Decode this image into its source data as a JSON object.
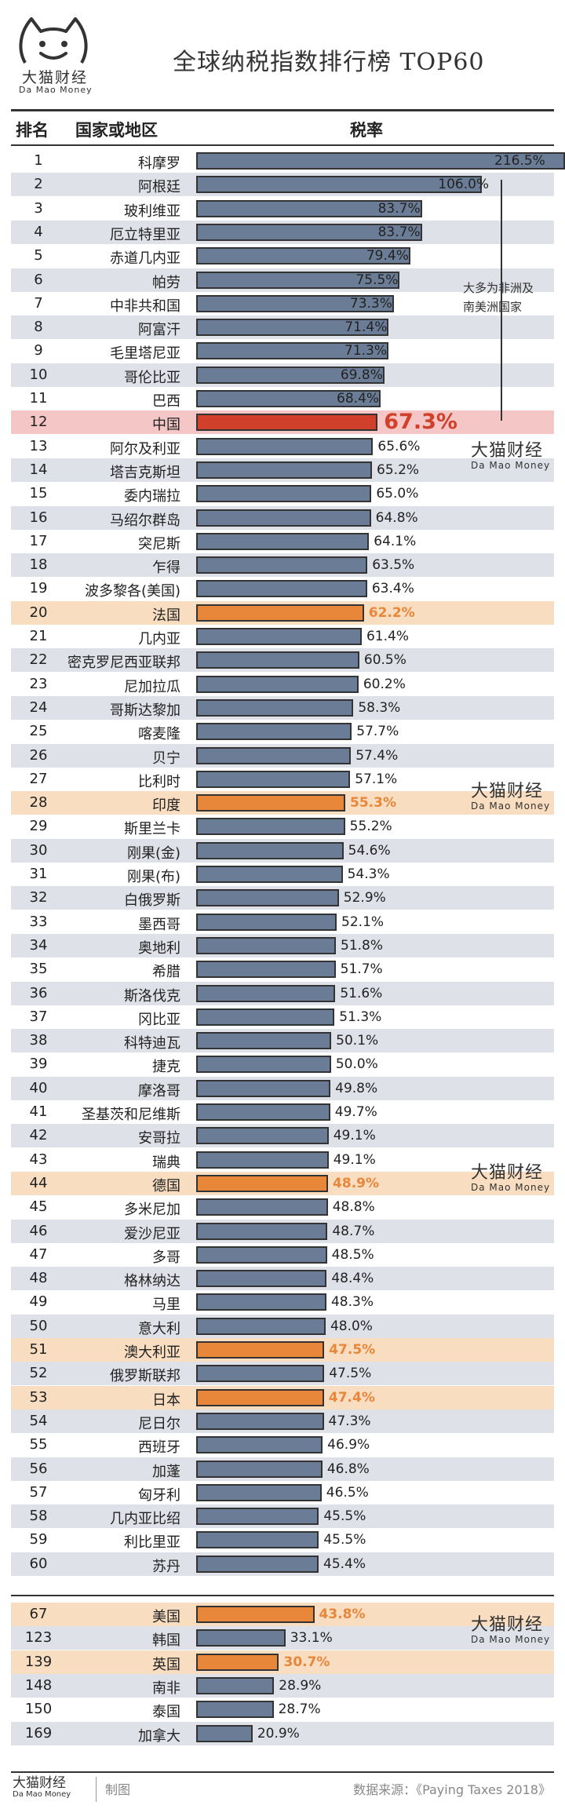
{
  "header": {
    "title": "全球纳税指数排行榜 TOP60",
    "logo_cn": "大猫财经",
    "logo_en": "Da Mao Money"
  },
  "columns": {
    "rank": "排名",
    "country": "国家或地区",
    "rate": "税率"
  },
  "note": "大多为非洲及南美洲国家",
  "watermark": {
    "cn": "大猫财经",
    "en": "Da Mao Money"
  },
  "footer": {
    "logo_cn": "大猫财经",
    "logo_en": "Da Mao Money",
    "made": "制图",
    "source": "数据来源：《Paying Taxes 2018》"
  },
  "colors": {
    "bar": "#6b7d96",
    "highlight": "#e8863a",
    "china": "#d0402a",
    "row_shade": "#dfe1e8",
    "row_orange": "#f8ddc0",
    "row_red": "#f4c6c6"
  },
  "chart_data": {
    "type": "bar",
    "orientation": "horizontal",
    "value_unit": "%",
    "xlim": [
      0,
      110
    ],
    "rows": [
      {
        "rank": "1",
        "name": "科摩罗",
        "value": 216.5,
        "label": "216.5%"
      },
      {
        "rank": "2",
        "name": "阿根廷",
        "value": 106.0,
        "label": "106.0%"
      },
      {
        "rank": "3",
        "name": "玻利维亚",
        "value": 83.7,
        "label": "83.7%"
      },
      {
        "rank": "4",
        "name": "厄立特里亚",
        "value": 83.7,
        "label": "83.7%"
      },
      {
        "rank": "5",
        "name": "赤道几内亚",
        "value": 79.4,
        "label": "79.4%"
      },
      {
        "rank": "6",
        "name": "帕劳",
        "value": 75.5,
        "label": "75.5%"
      },
      {
        "rank": "7",
        "name": "中非共和国",
        "value": 73.3,
        "label": "73.3%"
      },
      {
        "rank": "8",
        "name": "阿富汗",
        "value": 71.4,
        "label": "71.4%"
      },
      {
        "rank": "9",
        "name": "毛里塔尼亚",
        "value": 71.3,
        "label": "71.3%"
      },
      {
        "rank": "10",
        "name": "哥伦比亚",
        "value": 69.8,
        "label": "69.8%"
      },
      {
        "rank": "11",
        "name": "巴西",
        "value": 68.4,
        "label": "68.4%"
      },
      {
        "rank": "12",
        "name": "中国",
        "value": 67.3,
        "label": "67.3%",
        "highlight": "china"
      },
      {
        "rank": "13",
        "name": "阿尔及利亚",
        "value": 65.6,
        "label": "65.6%"
      },
      {
        "rank": "14",
        "name": "塔吉克斯坦",
        "value": 65.2,
        "label": "65.2%"
      },
      {
        "rank": "15",
        "name": "委内瑞拉",
        "value": 65.0,
        "label": "65.0%"
      },
      {
        "rank": "16",
        "name": "马绍尔群岛",
        "value": 64.8,
        "label": "64.8%"
      },
      {
        "rank": "17",
        "name": "突尼斯",
        "value": 64.1,
        "label": "64.1%"
      },
      {
        "rank": "18",
        "name": "乍得",
        "value": 63.5,
        "label": "63.5%"
      },
      {
        "rank": "19",
        "name": "波多黎各(美国)",
        "value": 63.4,
        "label": "63.4%"
      },
      {
        "rank": "20",
        "name": "法国",
        "value": 62.2,
        "label": "62.2%",
        "highlight": "orange"
      },
      {
        "rank": "21",
        "name": "几内亚",
        "value": 61.4,
        "label": "61.4%"
      },
      {
        "rank": "22",
        "name": "密克罗尼西亚联邦",
        "value": 60.5,
        "label": "60.5%"
      },
      {
        "rank": "23",
        "name": "尼加拉瓜",
        "value": 60.2,
        "label": "60.2%"
      },
      {
        "rank": "24",
        "name": "哥斯达黎加",
        "value": 58.3,
        "label": "58.3%"
      },
      {
        "rank": "25",
        "name": "喀麦隆",
        "value": 57.7,
        "label": "57.7%"
      },
      {
        "rank": "26",
        "name": "贝宁",
        "value": 57.4,
        "label": "57.4%"
      },
      {
        "rank": "27",
        "name": "比利时",
        "value": 57.1,
        "label": "57.1%"
      },
      {
        "rank": "28",
        "name": "印度",
        "value": 55.3,
        "label": "55.3%",
        "highlight": "orange"
      },
      {
        "rank": "29",
        "name": "斯里兰卡",
        "value": 55.2,
        "label": "55.2%"
      },
      {
        "rank": "30",
        "name": "刚果(金)",
        "value": 54.6,
        "label": "54.6%"
      },
      {
        "rank": "31",
        "name": "刚果(布)",
        "value": 54.3,
        "label": "54.3%"
      },
      {
        "rank": "32",
        "name": "白俄罗斯",
        "value": 52.9,
        "label": "52.9%"
      },
      {
        "rank": "33",
        "name": "墨西哥",
        "value": 52.1,
        "label": "52.1%"
      },
      {
        "rank": "34",
        "name": "奥地利",
        "value": 51.8,
        "label": "51.8%"
      },
      {
        "rank": "35",
        "name": "希腊",
        "value": 51.7,
        "label": "51.7%"
      },
      {
        "rank": "36",
        "name": "斯洛伐克",
        "value": 51.6,
        "label": "51.6%"
      },
      {
        "rank": "37",
        "name": "冈比亚",
        "value": 51.3,
        "label": "51.3%"
      },
      {
        "rank": "38",
        "name": "科特迪瓦",
        "value": 50.1,
        "label": "50.1%"
      },
      {
        "rank": "39",
        "name": "捷克",
        "value": 50.0,
        "label": "50.0%"
      },
      {
        "rank": "40",
        "name": "摩洛哥",
        "value": 49.8,
        "label": "49.8%"
      },
      {
        "rank": "41",
        "name": "圣基茨和尼维斯",
        "value": 49.7,
        "label": "49.7%"
      },
      {
        "rank": "42",
        "name": "安哥拉",
        "value": 49.1,
        "label": "49.1%"
      },
      {
        "rank": "43",
        "name": "瑞典",
        "value": 49.1,
        "label": "49.1%"
      },
      {
        "rank": "44",
        "name": "德国",
        "value": 48.9,
        "label": "48.9%",
        "highlight": "orange"
      },
      {
        "rank": "45",
        "name": "多米尼加",
        "value": 48.8,
        "label": "48.8%"
      },
      {
        "rank": "46",
        "name": "爱沙尼亚",
        "value": 48.7,
        "label": "48.7%"
      },
      {
        "rank": "47",
        "name": "多哥",
        "value": 48.5,
        "label": "48.5%"
      },
      {
        "rank": "48",
        "name": "格林纳达",
        "value": 48.4,
        "label": "48.4%"
      },
      {
        "rank": "49",
        "name": "马里",
        "value": 48.3,
        "label": "48.3%"
      },
      {
        "rank": "50",
        "name": "意大利",
        "value": 48.0,
        "label": "48.0%"
      },
      {
        "rank": "51",
        "name": "澳大利亚",
        "value": 47.5,
        "label": "47.5%",
        "highlight": "orange"
      },
      {
        "rank": "52",
        "name": "俄罗斯联邦",
        "value": 47.5,
        "label": "47.5%"
      },
      {
        "rank": "53",
        "name": "日本",
        "value": 47.4,
        "label": "47.4%",
        "highlight": "orange"
      },
      {
        "rank": "54",
        "name": "尼日尔",
        "value": 47.3,
        "label": "47.3%"
      },
      {
        "rank": "55",
        "name": "西班牙",
        "value": 46.9,
        "label": "46.9%"
      },
      {
        "rank": "56",
        "name": "加蓬",
        "value": 46.8,
        "label": "46.8%"
      },
      {
        "rank": "57",
        "name": "匈牙利",
        "value": 46.5,
        "label": "46.5%"
      },
      {
        "rank": "58",
        "name": "几内亚比绍",
        "value": 45.5,
        "label": "45.5%"
      },
      {
        "rank": "59",
        "name": "利比里亚",
        "value": 45.5,
        "label": "45.5%"
      },
      {
        "rank": "60",
        "name": "苏丹",
        "value": 45.4,
        "label": "45.4%"
      },
      {
        "rank": "67",
        "name": "美国",
        "value": 43.8,
        "label": "43.8%",
        "highlight": "orange",
        "group": "extra"
      },
      {
        "rank": "123",
        "name": "韩国",
        "value": 33.1,
        "label": "33.1%",
        "group": "extra"
      },
      {
        "rank": "139",
        "name": "英国",
        "value": 30.7,
        "label": "30.7%",
        "highlight": "orange",
        "group": "extra"
      },
      {
        "rank": "148",
        "name": "南非",
        "value": 28.9,
        "label": "28.9%",
        "group": "extra"
      },
      {
        "rank": "150",
        "name": "泰国",
        "value": 28.7,
        "label": "28.7%",
        "group": "extra"
      },
      {
        "rank": "169",
        "name": "加拿大",
        "value": 20.9,
        "label": "20.9%",
        "group": "extra"
      }
    ]
  }
}
